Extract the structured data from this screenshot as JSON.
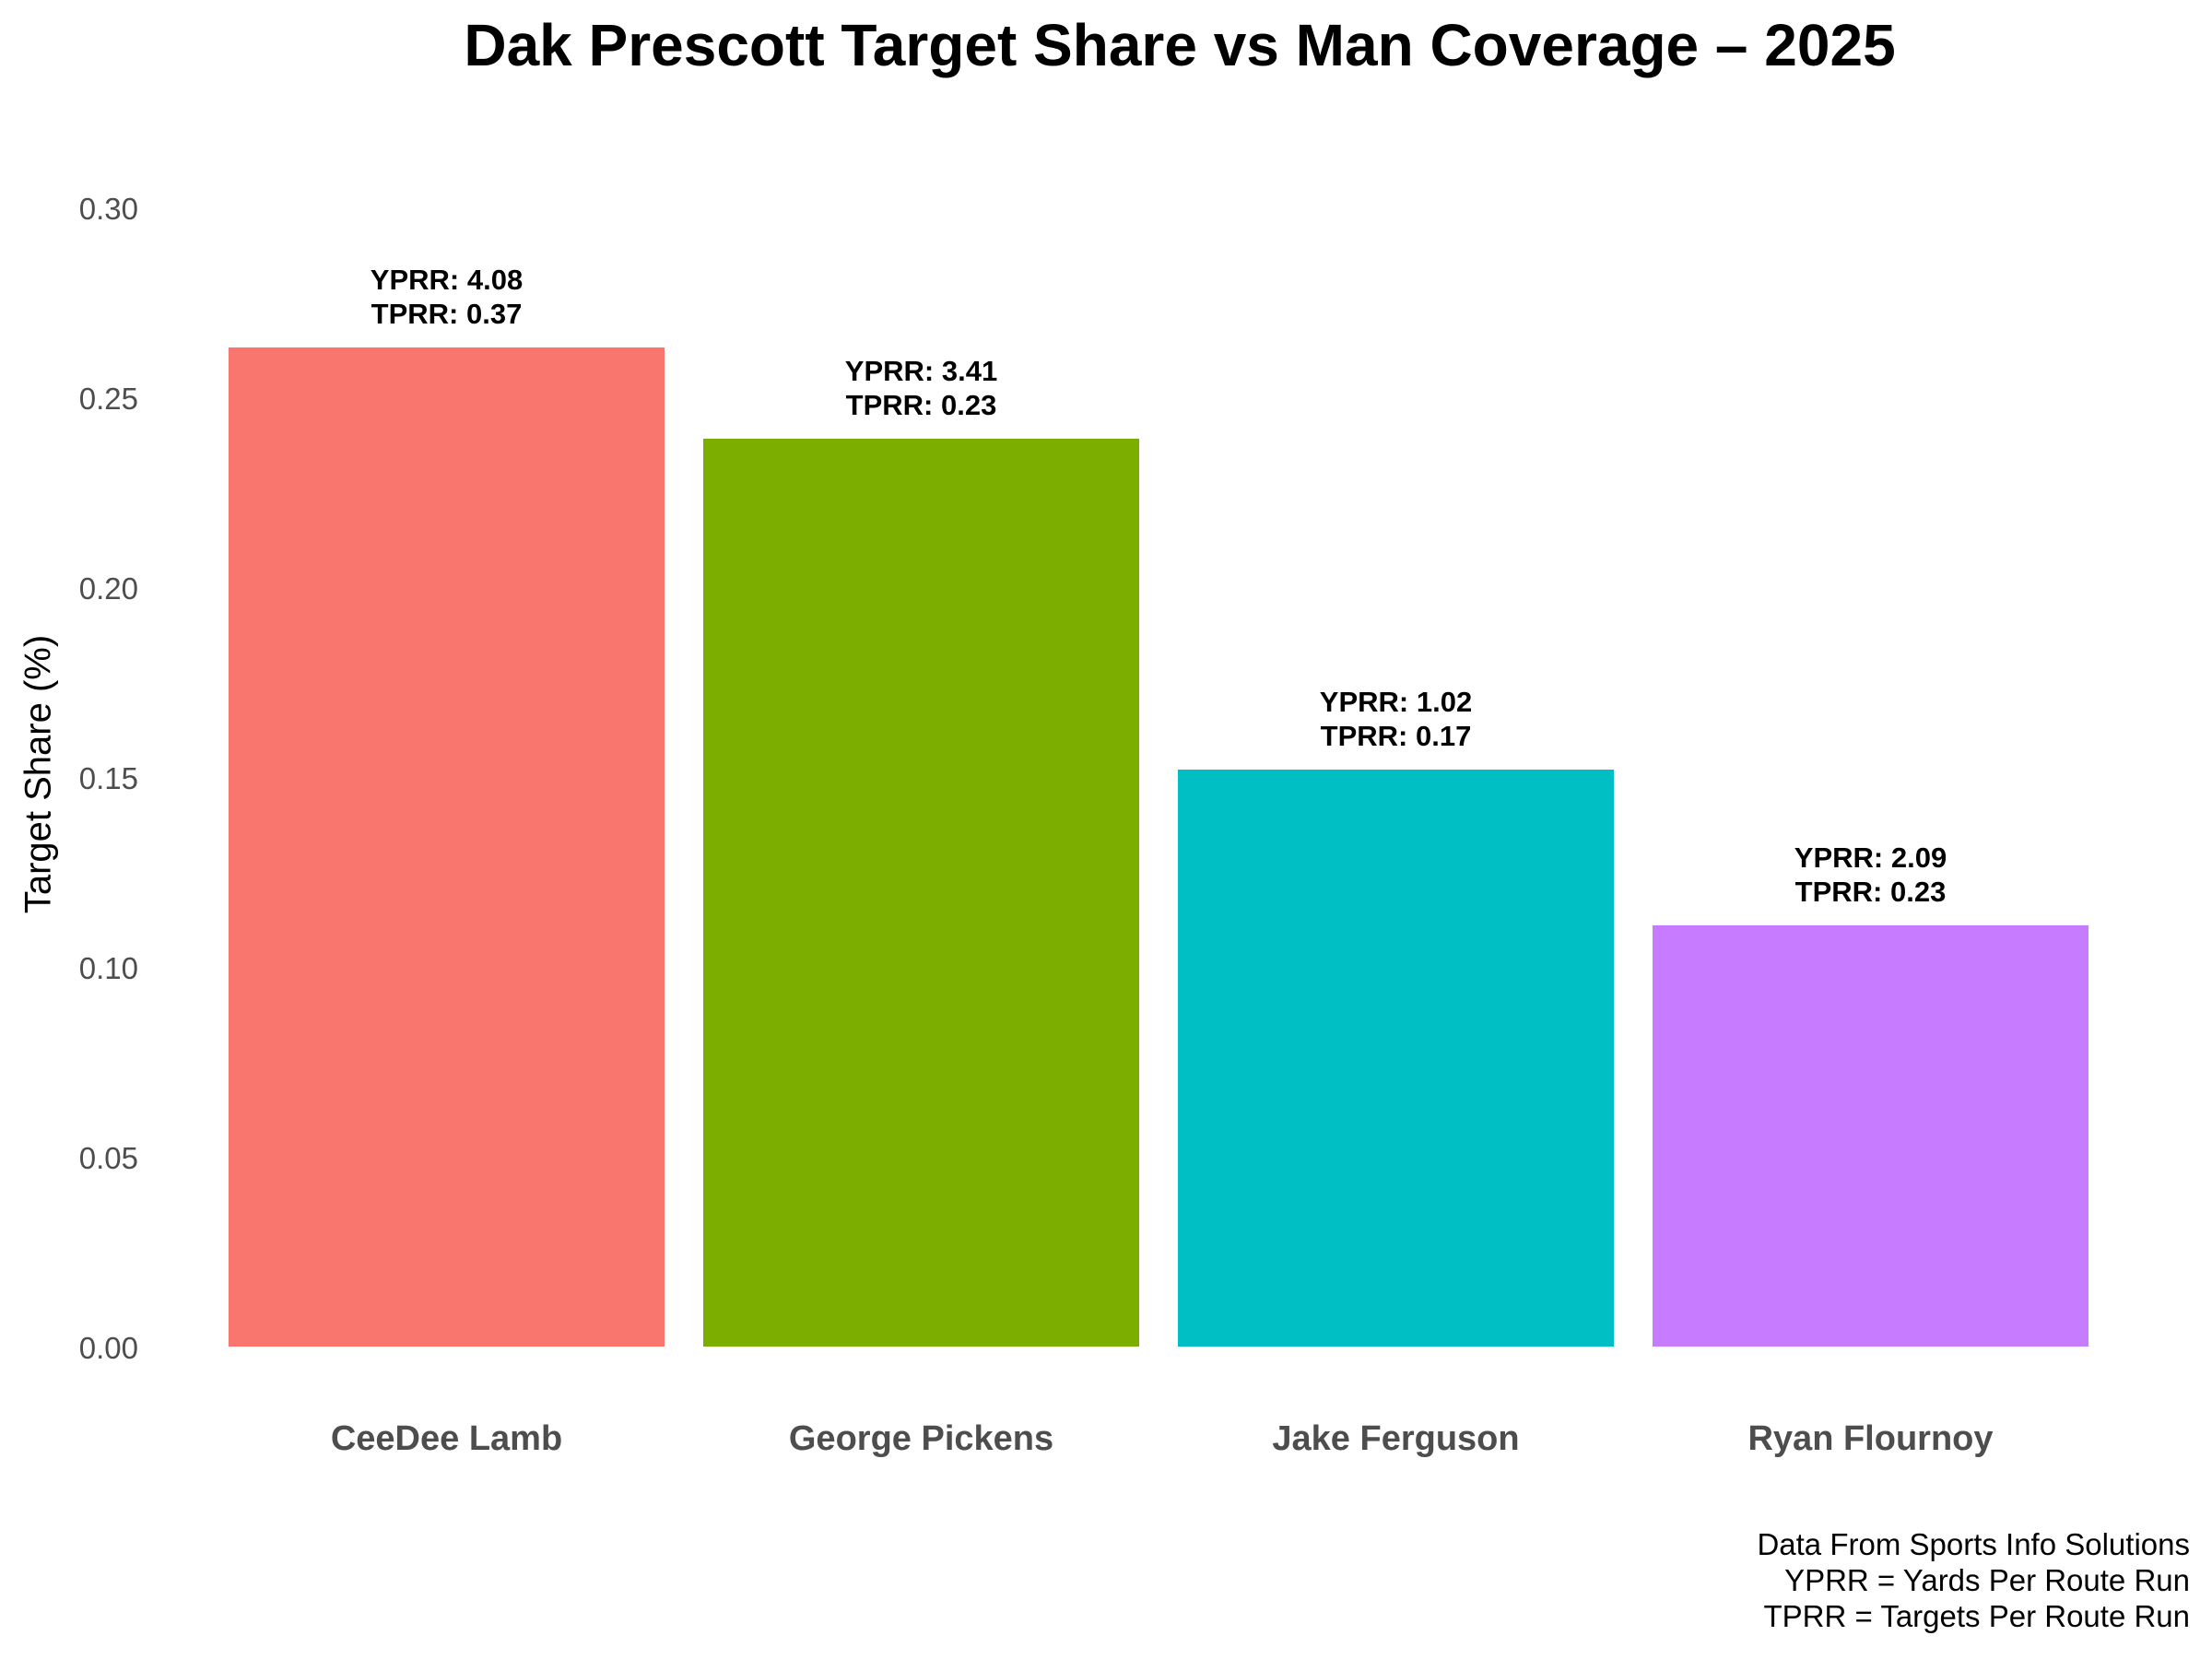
{
  "chart_data": {
    "type": "bar",
    "title": "Dak Prescott Target Share vs Man Coverage – 2025",
    "xlabel": "",
    "ylabel": "Target Share (%)",
    "ylim": [
      0,
      0.3
    ],
    "yticks": [
      "0.00",
      "0.05",
      "0.10",
      "0.15",
      "0.20",
      "0.25",
      "0.30"
    ],
    "grid": false,
    "legend": "none",
    "categories": [
      "CeeDee Lamb",
      "George Pickens",
      "Jake Ferguson",
      "Ryan Flournoy"
    ],
    "values": [
      0.263,
      0.239,
      0.152,
      0.111
    ],
    "colors": [
      "#F8766D",
      "#7CAE00",
      "#00BFC4",
      "#C77CFF"
    ],
    "annotations": [
      {
        "category": "CeeDee Lamb",
        "yprr": "YPRR: 4.08",
        "tprr": "TPRR: 0.37"
      },
      {
        "category": "George Pickens",
        "yprr": "YPRR: 3.41",
        "tprr": "TPRR: 0.23"
      },
      {
        "category": "Jake Ferguson",
        "yprr": "YPRR: 1.02",
        "tprr": "TPRR: 0.17"
      },
      {
        "category": "Ryan Flournoy",
        "yprr": "YPRR: 2.09",
        "tprr": "TPRR: 0.23"
      }
    ],
    "caption": [
      "Data From Sports Info Solutions",
      "YPRR = Yards Per Route Run",
      "TPRR = Targets Per Route Run"
    ]
  }
}
